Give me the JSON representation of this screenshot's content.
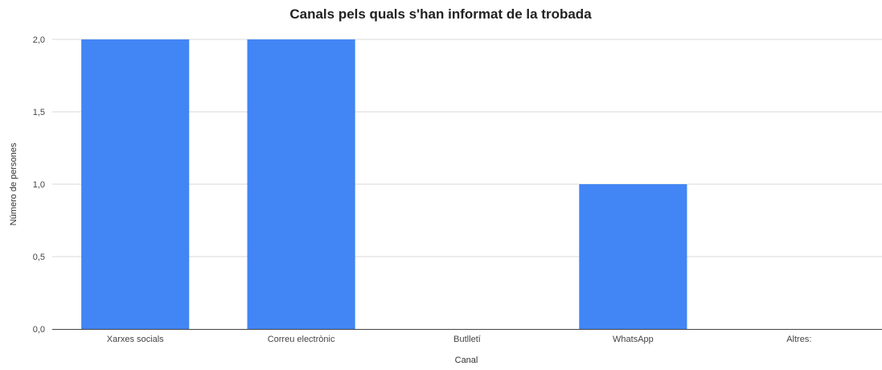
{
  "chart_data": {
    "type": "bar",
    "title": "Canals pels quals s'han informat de la trobada",
    "xlabel": "Canal",
    "ylabel": "Número de persones",
    "categories": [
      "Xarxes socials",
      "Correu electrònic",
      "Butlletí",
      "WhatsApp",
      "Altres:"
    ],
    "values": [
      2,
      2,
      0,
      1,
      0
    ],
    "ylim": [
      0,
      2
    ],
    "yticks": [
      "0,0",
      "0,5",
      "1,0",
      "1,5",
      "2,0"
    ],
    "grid": true,
    "legend": "none",
    "bar_color": "#4285f4",
    "gridline_color": "#d9d9d9",
    "axis_color": "#444444"
  }
}
